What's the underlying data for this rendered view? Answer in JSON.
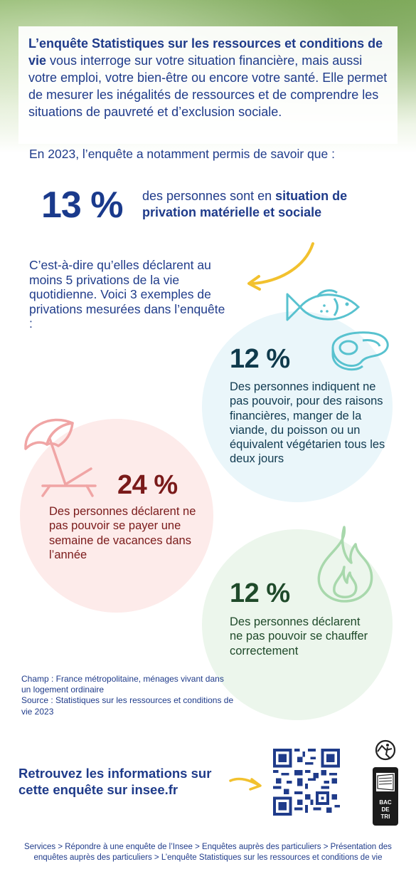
{
  "intro": {
    "bold": "L’enquête Statistiques sur les ressources et conditions de vie",
    "rest": " vous interroge sur votre situation financière, mais aussi votre emploi, votre bien-être ou encore votre santé. Elle permet de mesurer les inégalités de ressources et de comprendre les situations de pauvreté et d’exclusion sociale."
  },
  "lead": "En 2023, l’enquête a notamment permis de savoir que :",
  "headline": {
    "percent": "13 %",
    "text_plain": "des personnes sont en ",
    "text_bold": "situation de privation matérielle et sociale"
  },
  "description": "C’est-à-dire qu’elles déclarent au moins 5 privations de la vie quotidienne. Voici 3 exemples de privations mesurées dans l’enquête :",
  "stats": [
    {
      "percent": "12 %",
      "text": "Des personnes indiquent ne pas pouvoir, pour des raisons financières, manger de la viande, du poisson ou un équivalent végétarien tous les deux jours",
      "color": "#0f3a4c",
      "icon": "fish-meat-icon"
    },
    {
      "percent": "24 %",
      "text": "Des personnes déclarent ne pas pouvoir se payer une semaine de vacances dans l’année",
      "color": "#7a1a1a",
      "icon": "beach-umbrella-icon"
    },
    {
      "percent": "12 %",
      "text": "Des personnes déclarent ne pas pouvoir se chauffer correctement",
      "color": "#1f4a2a",
      "icon": "flame-icon"
    }
  ],
  "source": {
    "champ": "Champ : France métropolitaine, ménages vivant dans un logement ordinaire",
    "source": "Source : Statistiques sur les ressources et conditions de vie 2023"
  },
  "cta": "Retrouvez les informations sur cette enquête sur insee.fr",
  "triman_label": "BAC DE TRI",
  "breadcrumb": "Services > Répondre à une enquête de l’Insee > Enquêtes auprès des particuliers > Présentation des enquêtes auprès des particuliers > L’enquête Statistiques sur les ressources et conditions de vie",
  "colors": {
    "primary": "#1f3b8a",
    "accent_arrow": "#f2c12e",
    "blue_circle": "#eaf6fa",
    "pink_circle": "#fdebea",
    "green_circle": "#ecf6ec"
  }
}
